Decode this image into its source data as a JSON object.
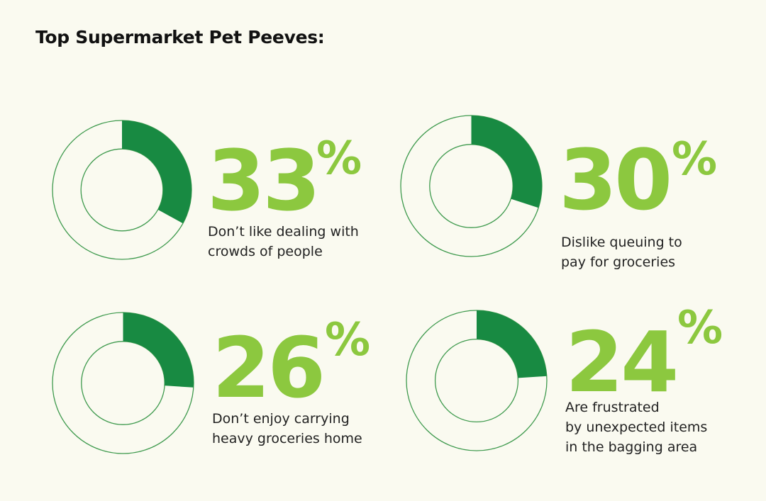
{
  "title": "Top Supermarket Pet Peeves:",
  "colors": {
    "background": "#fafaf0",
    "donut_fill": "#188a42",
    "donut_outline": "#3f9a4e",
    "percent_text": "#8cc83f"
  },
  "chart_data": {
    "type": "pie",
    "title": "Top Supermarket Pet Peeves:",
    "items": [
      {
        "value": 33,
        "percent_label": "33",
        "percent_sign": "%",
        "description_lines": [
          "Don’t like dealing with",
          "crowds of people"
        ]
      },
      {
        "value": 30,
        "percent_label": "30",
        "percent_sign": "%",
        "description_lines": [
          "Dislike queuing to",
          "pay for groceries"
        ]
      },
      {
        "value": 26,
        "percent_label": "26",
        "percent_sign": "%",
        "description_lines": [
          "Don’t enjoy carrying",
          "heavy groceries home"
        ]
      },
      {
        "value": 24,
        "percent_label": "24",
        "percent_sign": "%",
        "description_lines": [
          "Are frustrated",
          "by unexpected items",
          "in the bagging area"
        ]
      }
    ]
  }
}
